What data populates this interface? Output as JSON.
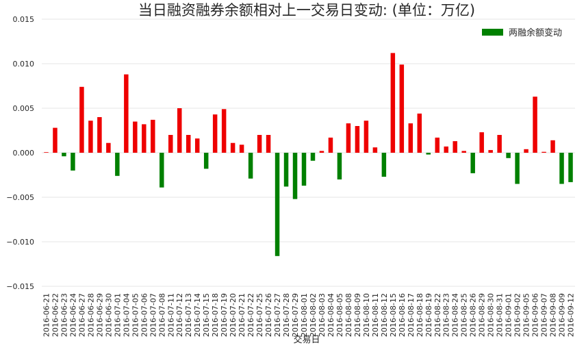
{
  "chart_data": {
    "type": "bar",
    "title": "当日融资融券余额相对上一交易日变动: (单位：万亿)",
    "xlabel": "交易日",
    "ylabel": "",
    "ylim": [
      -0.015,
      0.015
    ],
    "yticks": [
      -0.015,
      -0.01,
      -0.005,
      0.0,
      0.005,
      0.01,
      0.015
    ],
    "ytick_labels": [
      "−0.015",
      "−0.010",
      "−0.005",
      "0.000",
      "0.005",
      "0.010",
      "0.015"
    ],
    "grid": "horizontal",
    "legend_position": "top-right",
    "colors": {
      "positive": "#ee0000",
      "negative": "#008000",
      "legend": "#008000"
    },
    "categories": [
      "2016-06-21",
      "2016-06-22",
      "2016-06-23",
      "2016-06-24",
      "2016-06-27",
      "2016-06-28",
      "2016-06-29",
      "2016-06-30",
      "2016-07-01",
      "2016-07-04",
      "2016-07-05",
      "2016-07-06",
      "2016-07-07",
      "2016-07-08",
      "2016-07-11",
      "2016-07-12",
      "2016-07-13",
      "2016-07-14",
      "2016-07-15",
      "2016-07-18",
      "2016-07-19",
      "2016-07-20",
      "2016-07-21",
      "2016-07-22",
      "2016-07-25",
      "2016-07-26",
      "2016-07-27",
      "2016-07-28",
      "2016-07-29",
      "2016-08-01",
      "2016-08-02",
      "2016-08-03",
      "2016-08-04",
      "2016-08-05",
      "2016-08-08",
      "2016-08-09",
      "2016-08-10",
      "2016-08-11",
      "2016-08-12",
      "2016-08-15",
      "2016-08-16",
      "2016-08-17",
      "2016-08-18",
      "2016-08-19",
      "2016-08-22",
      "2016-08-23",
      "2016-08-24",
      "2016-08-25",
      "2016-08-26",
      "2016-08-29",
      "2016-08-30",
      "2016-08-31",
      "2016-09-01",
      "2016-09-02",
      "2016-09-05",
      "2016-09-06",
      "2016-09-07",
      "2016-09-08",
      "2016-09-09",
      "2016-09-12"
    ],
    "series": [
      {
        "name": "两融余额变动",
        "values": [
          0.0,
          0.0028,
          -0.0004,
          -0.002,
          0.0074,
          0.0036,
          0.004,
          0.0011,
          -0.0026,
          0.0088,
          0.0035,
          0.0032,
          0.0037,
          -0.0039,
          0.002,
          0.005,
          0.002,
          0.0016,
          -0.0018,
          0.0043,
          0.0049,
          0.0011,
          0.0009,
          -0.0029,
          0.002,
          0.002,
          -0.0116,
          -0.0038,
          -0.0052,
          -0.0037,
          -0.0009,
          0.0002,
          0.0017,
          -0.003,
          0.0033,
          0.003,
          0.0036,
          0.0006,
          -0.0027,
          0.0112,
          0.0099,
          0.0033,
          0.0044,
          -0.0002,
          0.0017,
          0.0007,
          0.0013,
          0.0002,
          -0.0023,
          0.0023,
          0.0003,
          0.002,
          -0.0006,
          -0.0035,
          0.0004,
          0.0063,
          0.0001,
          0.0014,
          -0.0035,
          -0.0033
        ]
      }
    ]
  }
}
